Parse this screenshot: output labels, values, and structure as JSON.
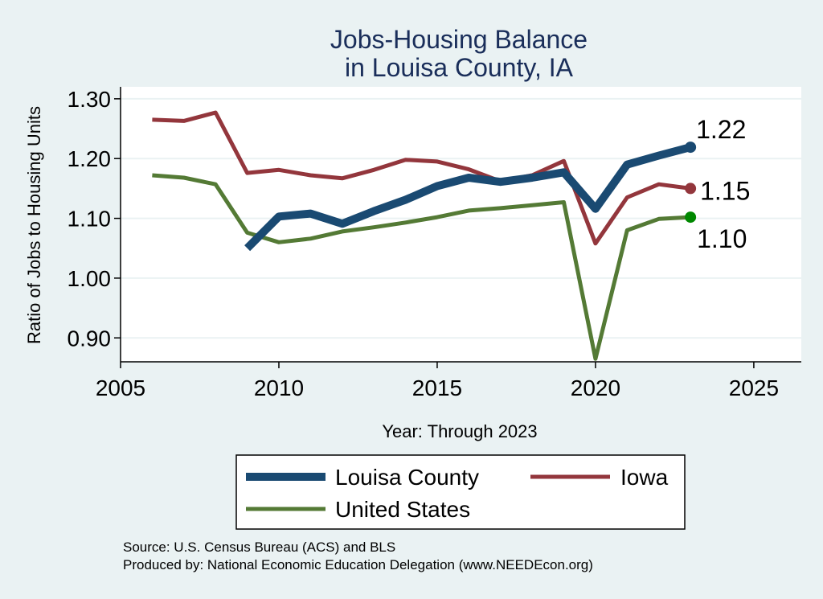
{
  "chart_data": {
    "type": "line",
    "title": [
      "Jobs-Housing Balance",
      "in Louisa County, IA"
    ],
    "xlabel": "Year: Through 2023",
    "ylabel": "Ratio of Jobs to Housing Units",
    "xlim": [
      2005,
      2026.5
    ],
    "ylim": [
      0.86,
      1.32
    ],
    "x_ticks": [
      2005,
      2010,
      2015,
      2020,
      2025
    ],
    "y_ticks": [
      0.9,
      1.0,
      1.1,
      1.2,
      1.3
    ],
    "y_tick_labels": [
      "0.90",
      "1.00",
      "1.10",
      "1.20",
      "1.30"
    ],
    "grid": true,
    "legend_position": "bottom",
    "series": [
      {
        "name": "Louisa County",
        "color": "#1a4a72",
        "x": [
          2009,
          2010,
          2011,
          2012,
          2013,
          2014,
          2015,
          2016,
          2017,
          2018,
          2019,
          2020,
          2021,
          2022,
          2023
        ],
        "values": [
          1.05,
          1.103,
          1.108,
          1.091,
          1.112,
          1.131,
          1.154,
          1.168,
          1.161,
          1.168,
          1.177,
          1.116,
          1.19,
          1.205,
          1.219
        ],
        "end_label": "1.22"
      },
      {
        "name": "Iowa",
        "color": "#93363c",
        "x": [
          2006,
          2007,
          2008,
          2009,
          2010,
          2011,
          2012,
          2013,
          2014,
          2015,
          2016,
          2017,
          2018,
          2019,
          2020,
          2021,
          2022,
          2023
        ],
        "values": [
          1.265,
          1.263,
          1.277,
          1.176,
          1.181,
          1.172,
          1.167,
          1.181,
          1.198,
          1.195,
          1.182,
          1.162,
          1.172,
          1.196,
          1.058,
          1.135,
          1.157,
          1.15
        ],
        "end_label": "1.15"
      },
      {
        "name": "United States",
        "color": "#547a35",
        "end_color": "#008800",
        "x": [
          2006,
          2007,
          2008,
          2009,
          2010,
          2011,
          2012,
          2013,
          2014,
          2015,
          2016,
          2017,
          2018,
          2019,
          2020,
          2021,
          2022,
          2023
        ],
        "values": [
          1.172,
          1.168,
          1.157,
          1.076,
          1.06,
          1.066,
          1.078,
          1.085,
          1.093,
          1.102,
          1.113,
          1.117,
          1.122,
          1.127,
          0.865,
          1.08,
          1.099,
          1.102
        ],
        "end_label": "1.10"
      }
    ]
  },
  "source_note": "Source: U.S. Census Bureau (ACS) and BLS",
  "produced_by": "Produced by: National Economic Education Delegation (www.NEEDEcon.org)"
}
